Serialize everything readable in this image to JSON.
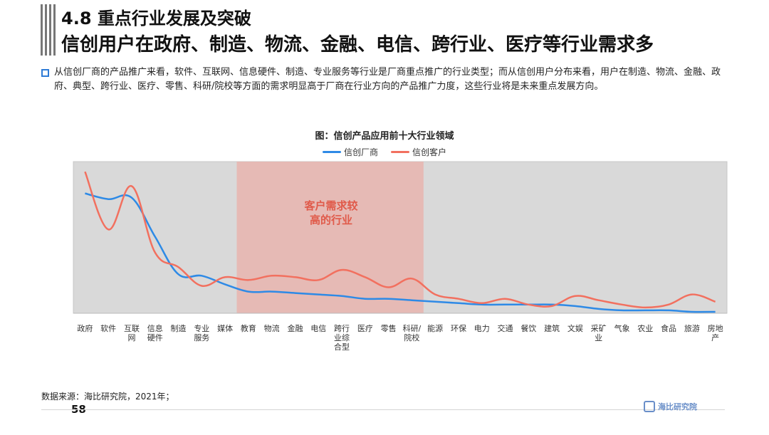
{
  "header": {
    "title_line1": "4.8 重点行业发展及突破",
    "title_line2": "信创用户在政府、制造、物流、金融、电信、跨行业、医疗等行业需求多"
  },
  "description": "从信创厂商的产品推广来看，软件、互联网、信息硬件、制造、专业服务等行业是厂商重点推广的行业类型；而从信创用户分布来看，用户在制造、物流、金融、政府、典型、跨行业、医疗、零售、科研/院校等方面的需求明显高于厂商在行业方向的产品推广力度，这些行业将是未来重点发展方向。",
  "colors": {
    "vendor": "#2e8ae6",
    "customer": "#f2705f",
    "plot_bg": "#d9d9d9",
    "highlight": "#e8b4ae",
    "highlight_text": "#e05a4a"
  },
  "chart_data": {
    "type": "line",
    "title": "图：信创产品应用前十大行业领域",
    "highlight_label_line1": "客户需求较",
    "highlight_label_line2": "高的行业",
    "highlight_range": [
      "教育",
      "科研/院校"
    ],
    "categories": [
      "政府",
      "软件",
      "互联网",
      "信息硬件",
      "制造",
      "专业服务",
      "媒体",
      "教育",
      "物流",
      "金融",
      "电信",
      "跨行业综合型",
      "医疗",
      "零售",
      "科研/院校",
      "能源",
      "环保",
      "电力",
      "交通",
      "餐饮",
      "建筑",
      "文娱",
      "采矿业",
      "气象",
      "农业",
      "食品",
      "旅游",
      "房地产"
    ],
    "category_labels": [
      [
        "政府"
      ],
      [
        "软件"
      ],
      [
        "互联",
        "网"
      ],
      [
        "信息",
        "硬件"
      ],
      [
        "制造"
      ],
      [
        "专业",
        "服务"
      ],
      [
        "媒体"
      ],
      [
        "教育"
      ],
      [
        "物流"
      ],
      [
        "金融"
      ],
      [
        "电信"
      ],
      [
        "跨行",
        "业综",
        "合型"
      ],
      [
        "医疗"
      ],
      [
        "零售"
      ],
      [
        "科研/",
        "院校"
      ],
      [
        "能源"
      ],
      [
        "环保"
      ],
      [
        "电力"
      ],
      [
        "交通"
      ],
      [
        "餐饮"
      ],
      [
        "建筑"
      ],
      [
        "文娱"
      ],
      [
        "采矿",
        "业"
      ],
      [
        "气象"
      ],
      [
        "农业"
      ],
      [
        "食品"
      ],
      [
        "旅游"
      ],
      [
        "房地",
        "产"
      ]
    ],
    "series": [
      {
        "name": "信创厂商",
        "values": [
          83,
          79,
          80,
          53,
          27,
          26,
          20,
          15,
          15,
          14,
          13,
          12,
          10,
          10,
          9,
          8,
          7,
          6,
          6,
          6,
          6,
          5,
          3,
          2,
          2,
          2,
          1,
          1
        ]
      },
      {
        "name": "信创客户",
        "values": [
          98,
          58,
          88,
          42,
          32,
          19,
          25,
          23,
          26,
          25,
          23,
          30,
          25,
          18,
          24,
          13,
          10,
          7,
          10,
          6,
          5,
          12,
          9,
          6,
          4,
          6,
          13,
          8
        ]
      }
    ],
    "ylim": [
      0,
      105
    ]
  },
  "source": "数据来源：海比研究院，2021年；",
  "page_number": "58",
  "footer_logo_text": "海比研究院"
}
